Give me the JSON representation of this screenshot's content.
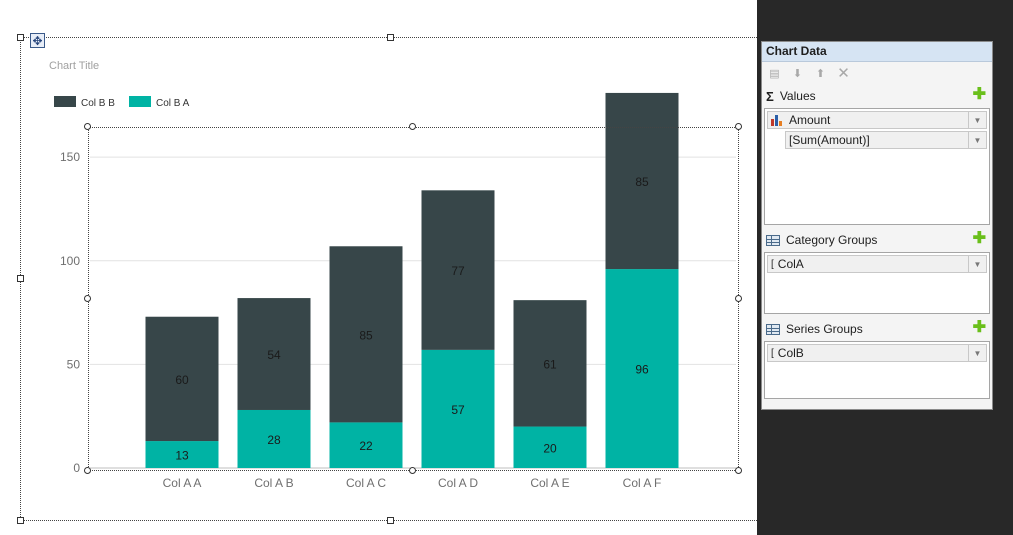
{
  "chart_data": {
    "type": "bar",
    "stacked": true,
    "title": "Chart Title",
    "categories": [
      "Col A A",
      "Col A B",
      "Col A C",
      "Col A D",
      "Col A E",
      "Col A F"
    ],
    "series": [
      {
        "name": "Col B A",
        "values": [
          13,
          28,
          22,
          57,
          20,
          96
        ],
        "color": "#00b3a4"
      },
      {
        "name": "Col B B",
        "values": [
          60,
          54,
          85,
          77,
          61,
          85
        ],
        "color": "#374649"
      }
    ],
    "legend_order": [
      "Col B B",
      "Col B A"
    ],
    "legend_position": "top-left",
    "y_ticks": [
      0,
      50,
      100,
      150
    ],
    "ylim": [
      0,
      180
    ],
    "grid": true,
    "data_labels": true
  },
  "panel": {
    "title": "Chart Data",
    "values_label": "Values",
    "value_field": "Amount",
    "value_expression": "[Sum(Amount)]",
    "category_label": "Category Groups",
    "category_field": "ColA",
    "series_label": "Series Groups",
    "series_field": "ColB"
  },
  "colors": {
    "accent_plus": "#6abf1b",
    "panel_header": "#d6e4f3"
  }
}
